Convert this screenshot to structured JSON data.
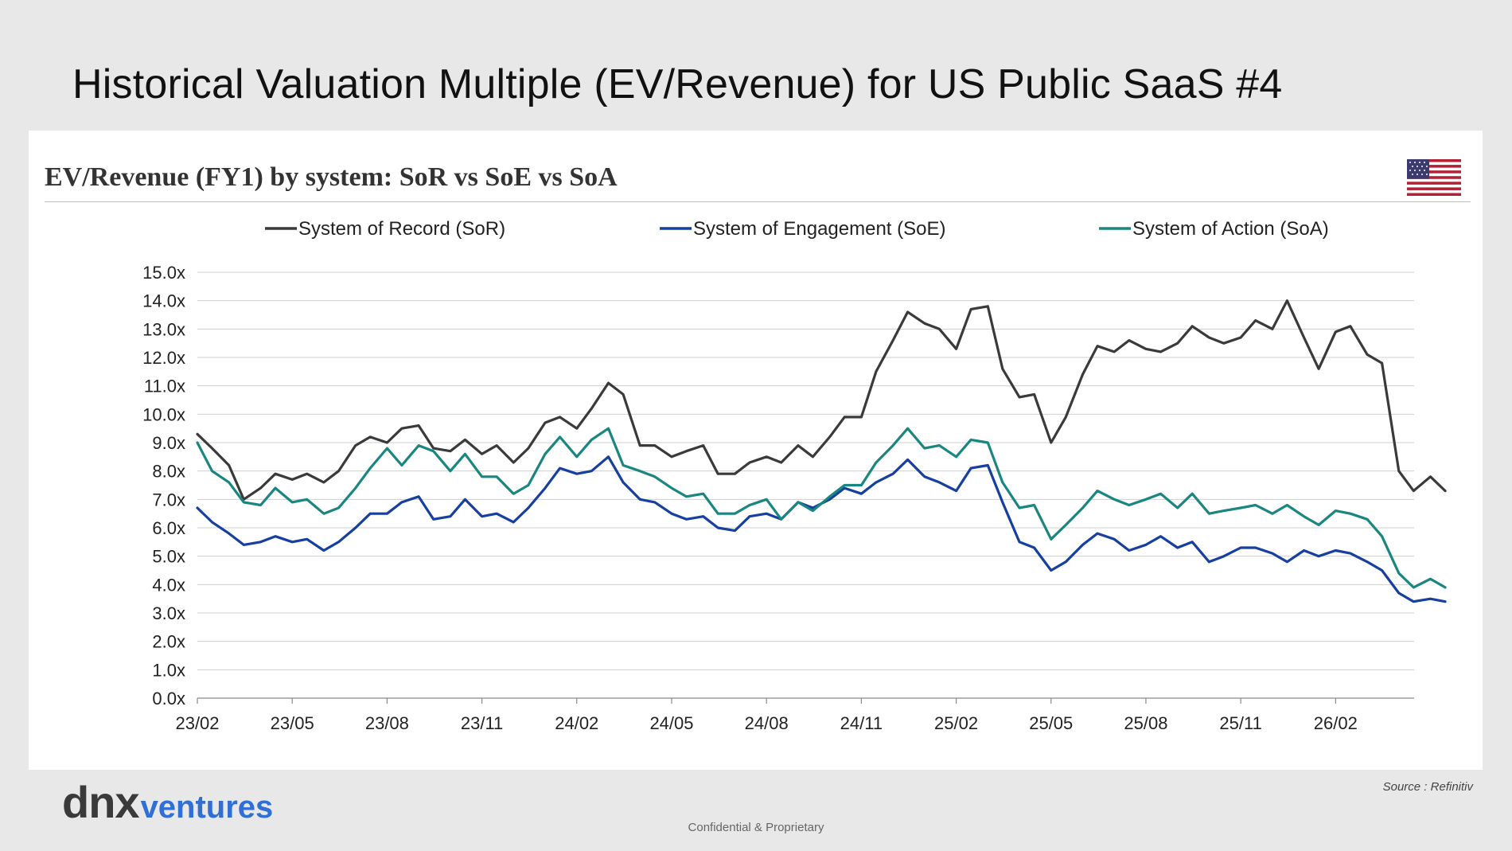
{
  "slide": {
    "title": "Historical Valuation Multiple (EV/Revenue) for US Public SaaS #4",
    "source": "Source : Refinitiv",
    "logo_primary": "dnx",
    "logo_secondary": "ventures",
    "footer": "Confidential & Proprietary"
  },
  "flag": {
    "icon": "us-flag-icon"
  },
  "colors": {
    "sor": "#3a3a3a",
    "soe": "#163fa0",
    "soa": "#1a8680",
    "grid": "#cfcfcf"
  },
  "chart_data": {
    "type": "line",
    "title": "EV/Revenue (FY1) by system: SoR vs SoE vs SoA",
    "legend_position": "top",
    "grid": true,
    "y_ticks": [
      "0.0x",
      "1.0x",
      "2.0x",
      "3.0x",
      "4.0x",
      "5.0x",
      "6.0x",
      "7.0x",
      "8.0x",
      "9.0x",
      "10.0x",
      "11.0x",
      "12.0x",
      "13.0x",
      "14.0x",
      "15.0x"
    ],
    "x_ticks": [
      "23/02",
      "23/05",
      "23/08",
      "23/11",
      "24/02",
      "24/05",
      "24/08",
      "24/11",
      "25/02",
      "25/05",
      "25/08",
      "25/11",
      "26/02"
    ],
    "ylim": [
      0,
      15
    ],
    "x_range": [
      "2023-02",
      "2026-04"
    ],
    "series": [
      {
        "name": "System of Record (SoR)",
        "points": [
          [
            "2023-02",
            9.3
          ],
          [
            "2023-02-15",
            8.8
          ],
          [
            "2023-03",
            8.2
          ],
          [
            "2023-03-15",
            7.0
          ],
          [
            "2023-04",
            7.4
          ],
          [
            "2023-04-15",
            7.9
          ],
          [
            "2023-05",
            7.7
          ],
          [
            "2023-05-15",
            7.9
          ],
          [
            "2023-06",
            7.6
          ],
          [
            "2023-06-15",
            8.0
          ],
          [
            "2023-07",
            8.9
          ],
          [
            "2023-07-15",
            9.2
          ],
          [
            "2023-08",
            9.0
          ],
          [
            "2023-08-15",
            9.5
          ],
          [
            "2023-09",
            9.6
          ],
          [
            "2023-09-15",
            8.8
          ],
          [
            "2023-10",
            8.7
          ],
          [
            "2023-10-15",
            9.1
          ],
          [
            "2023-11",
            8.6
          ],
          [
            "2023-11-15",
            8.9
          ],
          [
            "2023-12",
            8.3
          ],
          [
            "2023-12-15",
            8.8
          ],
          [
            "2024-01",
            9.7
          ],
          [
            "2024-01-15",
            9.9
          ],
          [
            "2024-02",
            9.5
          ],
          [
            "2024-02-15",
            10.2
          ],
          [
            "2024-03",
            11.1
          ],
          [
            "2024-03-15",
            10.7
          ],
          [
            "2024-04",
            8.9
          ],
          [
            "2024-04-15",
            8.9
          ],
          [
            "2024-05",
            8.5
          ],
          [
            "2024-05-15",
            8.7
          ],
          [
            "2024-06",
            8.9
          ],
          [
            "2024-06-15",
            7.9
          ],
          [
            "2024-07",
            7.9
          ],
          [
            "2024-07-15",
            8.3
          ],
          [
            "2024-08",
            8.5
          ],
          [
            "2024-08-15",
            8.3
          ],
          [
            "2024-09",
            8.9
          ],
          [
            "2024-09-15",
            8.5
          ],
          [
            "2024-10",
            9.2
          ],
          [
            "2024-10-15",
            9.9
          ],
          [
            "2024-11",
            9.9
          ],
          [
            "2024-11-15",
            11.5
          ],
          [
            "2024-12",
            12.6
          ],
          [
            "2024-12-15",
            13.6
          ],
          [
            "2025-01",
            13.2
          ],
          [
            "2025-01-15",
            13.0
          ],
          [
            "2025-02",
            12.3
          ],
          [
            "2025-02-15",
            13.7
          ],
          [
            "2025-03",
            13.8
          ],
          [
            "2025-03-15",
            11.6
          ],
          [
            "2025-04",
            10.6
          ],
          [
            "2025-04-15",
            10.7
          ],
          [
            "2025-05",
            9.0
          ],
          [
            "2025-05-15",
            9.9
          ],
          [
            "2025-06",
            11.4
          ],
          [
            "2025-06-15",
            12.4
          ],
          [
            "2025-07",
            12.2
          ],
          [
            "2025-07-15",
            12.6
          ],
          [
            "2025-08",
            12.3
          ],
          [
            "2025-08-15",
            12.2
          ],
          [
            "2025-09",
            12.5
          ],
          [
            "2025-09-15",
            13.1
          ],
          [
            "2025-10",
            12.7
          ],
          [
            "2025-10-15",
            12.5
          ],
          [
            "2025-11",
            12.7
          ],
          [
            "2025-11-15",
            13.3
          ],
          [
            "2025-12",
            13.0
          ],
          [
            "2025-12-15",
            14.0
          ],
          [
            "2026-01",
            12.7
          ],
          [
            "2026-01-15",
            11.6
          ],
          [
            "2026-02",
            12.9
          ],
          [
            "2026-02-15",
            13.1
          ],
          [
            "2026-03",
            12.1
          ],
          [
            "2026-03-15",
            11.8
          ],
          [
            "2026-04",
            8.0
          ],
          [
            "2026-04-15",
            7.3
          ],
          [
            "2026-05",
            7.8
          ],
          [
            "2026-05-15",
            7.3
          ]
        ]
      },
      {
        "name": "System of Engagement (SoE)",
        "points": [
          [
            "2023-02",
            6.7
          ],
          [
            "2023-02-15",
            6.2
          ],
          [
            "2023-03",
            5.8
          ],
          [
            "2023-03-15",
            5.4
          ],
          [
            "2023-04",
            5.5
          ],
          [
            "2023-04-15",
            5.7
          ],
          [
            "2023-05",
            5.5
          ],
          [
            "2023-05-15",
            5.6
          ],
          [
            "2023-06",
            5.2
          ],
          [
            "2023-06-15",
            5.5
          ],
          [
            "2023-07",
            6.0
          ],
          [
            "2023-07-15",
            6.5
          ],
          [
            "2023-08",
            6.5
          ],
          [
            "2023-08-15",
            6.9
          ],
          [
            "2023-09",
            7.1
          ],
          [
            "2023-09-15",
            6.3
          ],
          [
            "2023-10",
            6.4
          ],
          [
            "2023-10-15",
            7.0
          ],
          [
            "2023-11",
            6.4
          ],
          [
            "2023-11-15",
            6.5
          ],
          [
            "2023-12",
            6.2
          ],
          [
            "2023-12-15",
            6.7
          ],
          [
            "2024-01",
            7.4
          ],
          [
            "2024-01-15",
            8.1
          ],
          [
            "2024-02",
            7.9
          ],
          [
            "2024-02-15",
            8.0
          ],
          [
            "2024-03",
            8.5
          ],
          [
            "2024-03-15",
            7.6
          ],
          [
            "2024-04",
            7.0
          ],
          [
            "2024-04-15",
            6.9
          ],
          [
            "2024-05",
            6.5
          ],
          [
            "2024-05-15",
            6.3
          ],
          [
            "2024-06",
            6.4
          ],
          [
            "2024-06-15",
            6.0
          ],
          [
            "2024-07",
            5.9
          ],
          [
            "2024-07-15",
            6.4
          ],
          [
            "2024-08",
            6.5
          ],
          [
            "2024-08-15",
            6.3
          ],
          [
            "2024-09",
            6.9
          ],
          [
            "2024-09-15",
            6.7
          ],
          [
            "2024-10",
            7.0
          ],
          [
            "2024-10-15",
            7.4
          ],
          [
            "2024-11",
            7.2
          ],
          [
            "2024-11-15",
            7.6
          ],
          [
            "2024-12",
            7.9
          ],
          [
            "2024-12-15",
            8.4
          ],
          [
            "2025-01",
            7.8
          ],
          [
            "2025-01-15",
            7.6
          ],
          [
            "2025-02",
            7.3
          ],
          [
            "2025-02-15",
            8.1
          ],
          [
            "2025-03",
            8.2
          ],
          [
            "2025-03-15",
            6.9
          ],
          [
            "2025-04",
            5.5
          ],
          [
            "2025-04-15",
            5.3
          ],
          [
            "2025-05",
            4.5
          ],
          [
            "2025-05-15",
            4.8
          ],
          [
            "2025-06",
            5.4
          ],
          [
            "2025-06-15",
            5.8
          ],
          [
            "2025-07",
            5.6
          ],
          [
            "2025-07-15",
            5.2
          ],
          [
            "2025-08",
            5.4
          ],
          [
            "2025-08-15",
            5.7
          ],
          [
            "2025-09",
            5.3
          ],
          [
            "2025-09-15",
            5.5
          ],
          [
            "2025-10",
            4.8
          ],
          [
            "2025-10-15",
            5.0
          ],
          [
            "2025-11",
            5.3
          ],
          [
            "2025-11-15",
            5.3
          ],
          [
            "2025-12",
            5.1
          ],
          [
            "2025-12-15",
            4.8
          ],
          [
            "2026-01",
            5.2
          ],
          [
            "2026-01-15",
            5.0
          ],
          [
            "2026-02",
            5.2
          ],
          [
            "2026-02-15",
            5.1
          ],
          [
            "2026-03",
            4.8
          ],
          [
            "2026-03-15",
            4.5
          ],
          [
            "2026-04",
            3.7
          ],
          [
            "2026-04-15",
            3.4
          ],
          [
            "2026-05",
            3.5
          ],
          [
            "2026-05-15",
            3.4
          ]
        ]
      },
      {
        "name": "System of Action (SoA)",
        "points": [
          [
            "2023-02",
            9.0
          ],
          [
            "2023-02-15",
            8.0
          ],
          [
            "2023-03",
            7.6
          ],
          [
            "2023-03-15",
            6.9
          ],
          [
            "2023-04",
            6.8
          ],
          [
            "2023-04-15",
            7.4
          ],
          [
            "2023-05",
            6.9
          ],
          [
            "2023-05-15",
            7.0
          ],
          [
            "2023-06",
            6.5
          ],
          [
            "2023-06-15",
            6.7
          ],
          [
            "2023-07",
            7.4
          ],
          [
            "2023-07-15",
            8.1
          ],
          [
            "2023-08",
            8.8
          ],
          [
            "2023-08-15",
            8.2
          ],
          [
            "2023-09",
            8.9
          ],
          [
            "2023-09-15",
            8.7
          ],
          [
            "2023-10",
            8.0
          ],
          [
            "2023-10-15",
            8.6
          ],
          [
            "2023-11",
            7.8
          ],
          [
            "2023-11-15",
            7.8
          ],
          [
            "2023-12",
            7.2
          ],
          [
            "2023-12-15",
            7.5
          ],
          [
            "2024-01",
            8.6
          ],
          [
            "2024-01-15",
            9.2
          ],
          [
            "2024-02",
            8.5
          ],
          [
            "2024-02-15",
            9.1
          ],
          [
            "2024-03",
            9.5
          ],
          [
            "2024-03-15",
            8.2
          ],
          [
            "2024-04",
            8.0
          ],
          [
            "2024-04-15",
            7.8
          ],
          [
            "2024-05",
            7.4
          ],
          [
            "2024-05-15",
            7.1
          ],
          [
            "2024-06",
            7.2
          ],
          [
            "2024-06-15",
            6.5
          ],
          [
            "2024-07",
            6.5
          ],
          [
            "2024-07-15",
            6.8
          ],
          [
            "2024-08",
            7.0
          ],
          [
            "2024-08-15",
            6.3
          ],
          [
            "2024-09",
            6.9
          ],
          [
            "2024-09-15",
            6.6
          ],
          [
            "2024-10",
            7.1
          ],
          [
            "2024-10-15",
            7.5
          ],
          [
            "2024-11",
            7.5
          ],
          [
            "2024-11-15",
            8.3
          ],
          [
            "2024-12",
            8.9
          ],
          [
            "2024-12-15",
            9.5
          ],
          [
            "2025-01",
            8.8
          ],
          [
            "2025-01-15",
            8.9
          ],
          [
            "2025-02",
            8.5
          ],
          [
            "2025-02-15",
            9.1
          ],
          [
            "2025-03",
            9.0
          ],
          [
            "2025-03-15",
            7.6
          ],
          [
            "2025-04",
            6.7
          ],
          [
            "2025-04-15",
            6.8
          ],
          [
            "2025-05",
            5.6
          ],
          [
            "2025-05-15",
            6.1
          ],
          [
            "2025-06",
            6.7
          ],
          [
            "2025-06-15",
            7.3
          ],
          [
            "2025-07",
            7.0
          ],
          [
            "2025-07-15",
            6.8
          ],
          [
            "2025-08",
            7.0
          ],
          [
            "2025-08-15",
            7.2
          ],
          [
            "2025-09",
            6.7
          ],
          [
            "2025-09-15",
            7.2
          ],
          [
            "2025-10",
            6.5
          ],
          [
            "2025-10-15",
            6.6
          ],
          [
            "2025-11",
            6.7
          ],
          [
            "2025-11-15",
            6.8
          ],
          [
            "2025-12",
            6.5
          ],
          [
            "2025-12-15",
            6.8
          ],
          [
            "2026-01",
            6.4
          ],
          [
            "2026-01-15",
            6.1
          ],
          [
            "2026-02",
            6.6
          ],
          [
            "2026-02-15",
            6.5
          ],
          [
            "2026-03",
            6.3
          ],
          [
            "2026-03-15",
            5.7
          ],
          [
            "2026-04",
            4.4
          ],
          [
            "2026-04-15",
            3.9
          ],
          [
            "2026-05",
            4.2
          ],
          [
            "2026-05-15",
            3.9
          ]
        ]
      }
    ]
  }
}
